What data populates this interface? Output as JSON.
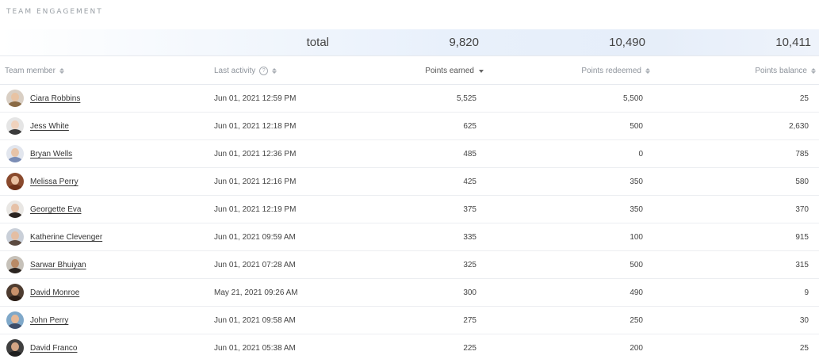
{
  "title": "TEAM ENGAGEMENT",
  "totals": {
    "label": "total",
    "points_earned": "9,820",
    "points_redeemed": "10,490",
    "points_balance": "10,411"
  },
  "columns": {
    "team_member": "Team member",
    "last_activity": "Last activity",
    "points_earned": "Points earned",
    "points_redeemed": "Points redeemed",
    "points_balance": "Points balance"
  },
  "colors": {
    "accent_bg": "#e6eef9",
    "text": "#333333",
    "muted": "#8d939b"
  },
  "rows": [
    {
      "name": "Ciara Robbins",
      "last_activity": "Jun 01, 2021 12:59 PM",
      "earned": "5,525",
      "redeemed": "5,500",
      "balance": "25",
      "avatar_bg": "#d9cfc4",
      "skin": "#e8c3a3",
      "hair": "#8a6a45"
    },
    {
      "name": "Jess White",
      "last_activity": "Jun 01, 2021 12:18 PM",
      "earned": "625",
      "redeemed": "500",
      "balance": "2,630",
      "avatar_bg": "#e5e5e5",
      "skin": "#f0d2bd",
      "hair": "#3b3b3b"
    },
    {
      "name": "Bryan Wells",
      "last_activity": "Jun 01, 2021 12:36 PM",
      "earned": "485",
      "redeemed": "0",
      "balance": "785",
      "avatar_bg": "#e2e6ee",
      "skin": "#e8c4a8",
      "hair": "#7b8db5"
    },
    {
      "name": "Melissa Perry",
      "last_activity": "Jun 01, 2021 12:16 PM",
      "earned": "425",
      "redeemed": "350",
      "balance": "580",
      "avatar_bg": "#8a4a2d",
      "skin": "#e9bfa0",
      "hair": "#6e3018"
    },
    {
      "name": "Georgette Eva",
      "last_activity": "Jun 01, 2021 12:19 PM",
      "earned": "375",
      "redeemed": "350",
      "balance": "370",
      "avatar_bg": "#e9e7e4",
      "skin": "#e6c1a7",
      "hair": "#2a2320"
    },
    {
      "name": "Katherine Clevenger",
      "last_activity": "Jun 01, 2021 09:59 AM",
      "earned": "335",
      "redeemed": "100",
      "balance": "915",
      "avatar_bg": "#c9cfd8",
      "skin": "#e4bea3",
      "hair": "#5b4a40"
    },
    {
      "name": "Sarwar Bhuiyan",
      "last_activity": "Jun 01, 2021 07:28 AM",
      "earned": "325",
      "redeemed": "500",
      "balance": "315",
      "avatar_bg": "#c6c1b9",
      "skin": "#b88a66",
      "hair": "#2b2420"
    },
    {
      "name": "David Monroe",
      "last_activity": "May 21, 2021 09:26 AM",
      "earned": "300",
      "redeemed": "490",
      "balance": "9",
      "avatar_bg": "#4e3c30",
      "skin": "#c8916b",
      "hair": "#2a1d16"
    },
    {
      "name": "John Perry",
      "last_activity": "Jun 01, 2021 09:58 AM",
      "earned": "275",
      "redeemed": "250",
      "balance": "30",
      "avatar_bg": "#7fa8c9",
      "skin": "#e6b896",
      "hair": "#3e4e6a"
    },
    {
      "name": "David Franco",
      "last_activity": "Jun 01, 2021 05:38 AM",
      "earned": "225",
      "redeemed": "200",
      "balance": "25",
      "avatar_bg": "#3f3f3f",
      "skin": "#d3a584",
      "hair": "#1e1e1e"
    }
  ]
}
